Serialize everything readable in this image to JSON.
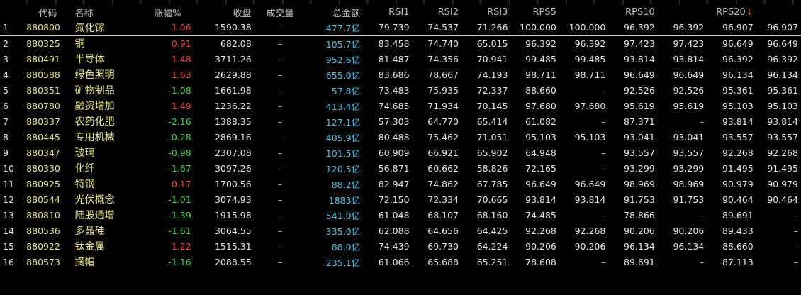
{
  "headers": {
    "num": "",
    "code": "代码",
    "name": "名称",
    "pct": "涨幅%",
    "close": "收盘",
    "vol": "成交量",
    "amt": "总金额",
    "rsi1": "RSI1",
    "rsi2": "RSI2",
    "rsi3": "RSI3",
    "rps5": "RPS5",
    "rps10": "RPS10",
    "rps20": "RPS20",
    "sort_arrow": "↓"
  },
  "colors": {
    "up": "#ff3b3b",
    "down": "#33dd33",
    "amount": "#3cc8f0",
    "code_name": "#e8e88a"
  },
  "rows": [
    {
      "num": "1",
      "code": "880800",
      "name": "氮化镓",
      "pct": "1.06",
      "dir": "up",
      "close": "1590.38",
      "vol": "–",
      "amt": "477.7亿",
      "rsi1": "79.739",
      "rsi2": "74.537",
      "rsi3": "71.266",
      "rps5": "100.000",
      "rps5b": "100.000",
      "rps10": "96.392",
      "rps10b": "96.392",
      "rps20": "96.907",
      "rps20b": "96.907"
    },
    {
      "num": "2",
      "code": "880325",
      "name": "铜",
      "pct": "0.91",
      "dir": "up",
      "close": "682.08",
      "vol": "–",
      "amt": "105.7亿",
      "rsi1": "83.458",
      "rsi2": "74.740",
      "rsi3": "65.015",
      "rps5": "96.392",
      "rps5b": "96.392",
      "rps10": "97.423",
      "rps10b": "97.423",
      "rps20": "96.649",
      "rps20b": "96.649"
    },
    {
      "num": "3",
      "code": "880491",
      "name": "半导体",
      "pct": "1.48",
      "dir": "up",
      "close": "3711.26",
      "vol": "–",
      "amt": "952.6亿",
      "rsi1": "81.487",
      "rsi2": "74.356",
      "rsi3": "70.941",
      "rps5": "99.485",
      "rps5b": "99.485",
      "rps10": "93.814",
      "rps10b": "93.814",
      "rps20": "96.392",
      "rps20b": "96.392"
    },
    {
      "num": "4",
      "code": "880588",
      "name": "绿色照明",
      "pct": "1.63",
      "dir": "up",
      "close": "2629.88",
      "vol": "–",
      "amt": "655.0亿",
      "rsi1": "83.686",
      "rsi2": "78.667",
      "rsi3": "74.193",
      "rps5": "98.711",
      "rps5b": "98.711",
      "rps10": "96.649",
      "rps10b": "96.649",
      "rps20": "96.134",
      "rps20b": "96.134"
    },
    {
      "num": "5",
      "code": "880351",
      "name": "矿物制品",
      "pct": "-1.08",
      "dir": "down",
      "close": "1661.98",
      "vol": "–",
      "amt": "57.8亿",
      "rsi1": "73.483",
      "rsi2": "75.935",
      "rsi3": "72.337",
      "rps5": "88.660",
      "rps5b": "–",
      "rps10": "92.526",
      "rps10b": "92.526",
      "rps20": "95.361",
      "rps20b": "95.361"
    },
    {
      "num": "6",
      "code": "880780",
      "name": "融资增加",
      "pct": "1.49",
      "dir": "up",
      "close": "1236.22",
      "vol": "–",
      "amt": "413.4亿",
      "rsi1": "74.685",
      "rsi2": "71.934",
      "rsi3": "70.145",
      "rps5": "97.680",
      "rps5b": "97.680",
      "rps10": "95.619",
      "rps10b": "95.619",
      "rps20": "95.103",
      "rps20b": "95.103"
    },
    {
      "num": "7",
      "code": "880337",
      "name": "农药化肥",
      "pct": "-2.16",
      "dir": "down",
      "close": "1388.35",
      "vol": "–",
      "amt": "127.1亿",
      "rsi1": "57.303",
      "rsi2": "64.770",
      "rsi3": "65.414",
      "rps5": "61.082",
      "rps5b": "–",
      "rps10": "87.371",
      "rps10b": "–",
      "rps20": "93.814",
      "rps20b": "93.814"
    },
    {
      "num": "8",
      "code": "880445",
      "name": "专用机械",
      "pct": "-0.28",
      "dir": "down",
      "close": "2869.16",
      "vol": "–",
      "amt": "405.9亿",
      "rsi1": "80.488",
      "rsi2": "75.462",
      "rsi3": "71.051",
      "rps5": "95.103",
      "rps5b": "95.103",
      "rps10": "93.041",
      "rps10b": "93.041",
      "rps20": "93.557",
      "rps20b": "93.557"
    },
    {
      "num": "9",
      "code": "880347",
      "name": "玻璃",
      "pct": "-0.98",
      "dir": "down",
      "close": "2307.08",
      "vol": "–",
      "amt": "101.5亿",
      "rsi1": "60.909",
      "rsi2": "66.921",
      "rsi3": "65.902",
      "rps5": "64.948",
      "rps5b": "–",
      "rps10": "93.557",
      "rps10b": "93.557",
      "rps20": "92.268",
      "rps20b": "92.268"
    },
    {
      "num": "10",
      "code": "880330",
      "name": "化纤",
      "pct": "-1.67",
      "dir": "down",
      "close": "3097.26",
      "vol": "–",
      "amt": "120.5亿",
      "rsi1": "56.871",
      "rsi2": "60.662",
      "rsi3": "58.826",
      "rps5": "72.165",
      "rps5b": "–",
      "rps10": "93.299",
      "rps10b": "93.299",
      "rps20": "91.495",
      "rps20b": "91.495"
    },
    {
      "num": "11",
      "code": "880925",
      "name": "特钢",
      "pct": "0.17",
      "dir": "up",
      "close": "1700.56",
      "vol": "–",
      "amt": "88.2亿",
      "rsi1": "82.947",
      "rsi2": "74.862",
      "rsi3": "67.785",
      "rps5": "96.649",
      "rps5b": "96.649",
      "rps10": "98.969",
      "rps10b": "98.969",
      "rps20": "90.979",
      "rps20b": "90.979"
    },
    {
      "num": "12",
      "code": "880544",
      "name": "光伏概念",
      "pct": "-1.01",
      "dir": "down",
      "close": "3074.93",
      "vol": "–",
      "amt": "1883亿",
      "rsi1": "72.150",
      "rsi2": "72.334",
      "rsi3": "70.665",
      "rps5": "93.814",
      "rps5b": "93.814",
      "rps10": "91.753",
      "rps10b": "91.753",
      "rps20": "90.464",
      "rps20b": "90.464"
    },
    {
      "num": "13",
      "code": "880810",
      "name": "陆股通增",
      "pct": "-1.39",
      "dir": "down",
      "close": "1915.98",
      "vol": "–",
      "amt": "541.0亿",
      "rsi1": "61.048",
      "rsi2": "68.107",
      "rsi3": "68.160",
      "rps5": "74.485",
      "rps5b": "–",
      "rps10": "78.866",
      "rps10b": "–",
      "rps20": "89.691",
      "rps20b": "–"
    },
    {
      "num": "14",
      "code": "880536",
      "name": "多晶硅",
      "pct": "-1.61",
      "dir": "down",
      "close": "3064.55",
      "vol": "–",
      "amt": "335.0亿",
      "rsi1": "62.088",
      "rsi2": "64.656",
      "rsi3": "64.425",
      "rps5": "92.268",
      "rps5b": "92.268",
      "rps10": "90.206",
      "rps10b": "90.206",
      "rps20": "89.433",
      "rps20b": "–"
    },
    {
      "num": "15",
      "code": "880922",
      "name": "钛金属",
      "pct": "1.22",
      "dir": "up",
      "close": "1515.31",
      "vol": "–",
      "amt": "88.0亿",
      "rsi1": "74.439",
      "rsi2": "69.730",
      "rsi3": "64.224",
      "rps5": "90.206",
      "rps5b": "90.206",
      "rps10": "96.134",
      "rps10b": "96.134",
      "rps20": "88.660",
      "rps20b": "–"
    },
    {
      "num": "16",
      "code": "880573",
      "name": "摘帽",
      "pct": "-1.16",
      "dir": "down",
      "close": "2088.55",
      "vol": "–",
      "amt": "235.1亿",
      "rsi1": "61.066",
      "rsi2": "65.688",
      "rsi3": "65.251",
      "rps5": "78.608",
      "rps5b": "–",
      "rps10": "89.691",
      "rps10b": "–",
      "rps20": "87.113",
      "rps20b": "–"
    }
  ]
}
